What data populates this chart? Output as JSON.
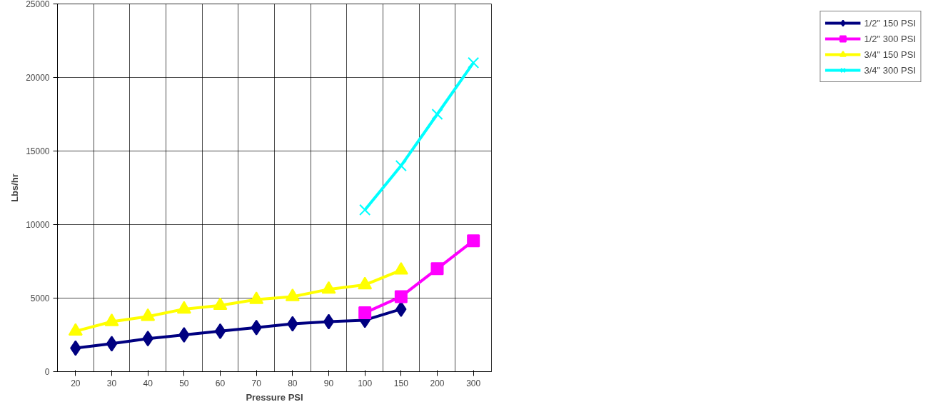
{
  "chart_data": {
    "type": "line",
    "xlabel": "Pressure PSI",
    "ylabel": "Lbs/hr",
    "categories": [
      "20",
      "30",
      "40",
      "50",
      "60",
      "70",
      "80",
      "90",
      "100",
      "150",
      "200",
      "300"
    ],
    "ylim": [
      0,
      25000
    ],
    "yticks": [
      0,
      5000,
      10000,
      15000,
      20000,
      25000
    ],
    "grid": true,
    "legend": "right",
    "line_style": "solid",
    "series": [
      {
        "name": "1/2\" 150 PSI",
        "color": "#000080",
        "marker": "diamond",
        "values": [
          1600,
          1900,
          2250,
          2500,
          2750,
          3000,
          3250,
          3400,
          3500,
          4250,
          null,
          null
        ]
      },
      {
        "name": "1/2\" 300 PSI",
        "color": "#ff00ff",
        "marker": "square",
        "values": [
          null,
          null,
          null,
          null,
          null,
          null,
          null,
          null,
          4000,
          5100,
          7000,
          8900
        ]
      },
      {
        "name": "3/4\" 150 PSI",
        "color": "#ffff00",
        "marker": "triangle",
        "values": [
          2750,
          3400,
          3750,
          4250,
          4500,
          4900,
          5100,
          5600,
          5900,
          6900,
          null,
          null
        ]
      },
      {
        "name": "3/4\" 300 PSI",
        "color": "#00ffff",
        "marker": "x",
        "values": [
          null,
          null,
          null,
          null,
          null,
          null,
          null,
          null,
          11000,
          14000,
          17500,
          21000
        ]
      }
    ]
  }
}
